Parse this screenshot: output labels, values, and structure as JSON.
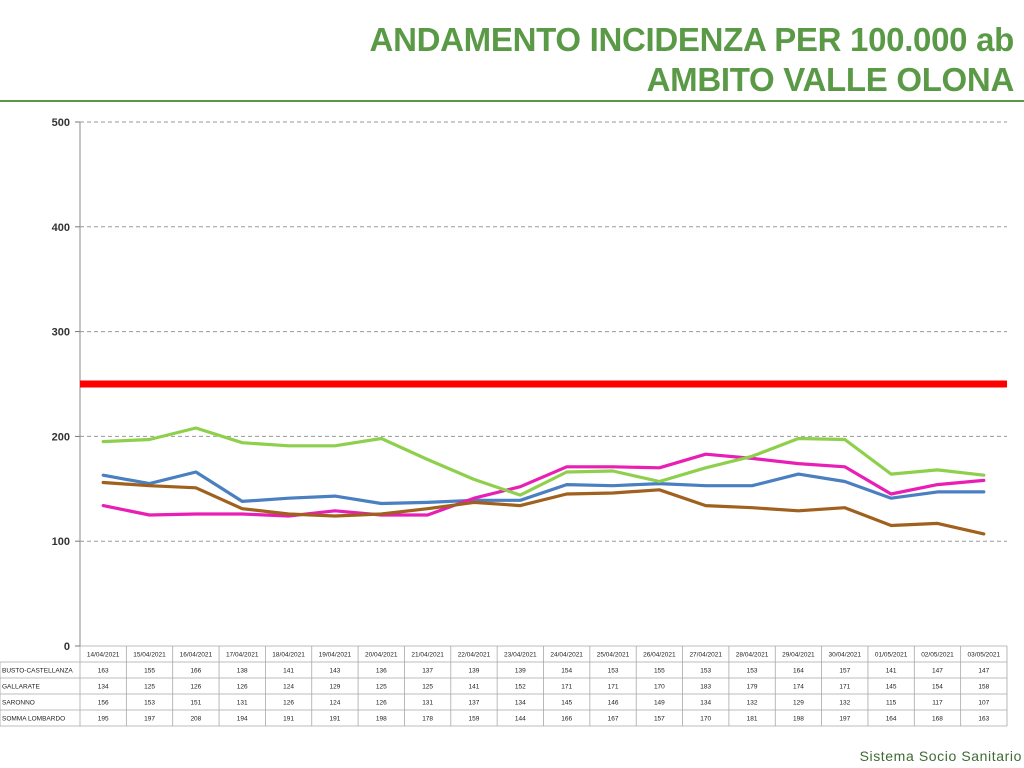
{
  "header": {
    "title_line1": "ANDAMENTO INCIDENZA PER 100.000 ab",
    "title_line2": "AMBITO VALLE OLONA"
  },
  "footer": {
    "text": "Sistema Socio Sanitario"
  },
  "colors": {
    "title": "#5a9a46",
    "threshold": "#ff0000",
    "busto": "#4a7fc1",
    "gallarate": "#e91eb4",
    "saronno": "#a0601e",
    "somma": "#8ed04c"
  },
  "chart_data": {
    "type": "line",
    "title": "ANDAMENTO INCIDENZA PER 100.000 ab - AMBITO VALLE OLONA",
    "ylim": [
      0,
      500
    ],
    "yticks": [
      0,
      100,
      200,
      300,
      400,
      500
    ],
    "grid": true,
    "threshold": 250,
    "categories": [
      "14/04/2021",
      "15/04/2021",
      "16/04/2021",
      "17/04/2021",
      "18/04/2021",
      "19/04/2021",
      "20/04/2021",
      "21/04/2021",
      "22/04/2021",
      "23/04/2021",
      "24/04/2021",
      "25/04/2021",
      "26/04/2021",
      "27/04/2021",
      "28/04/2021",
      "29/04/2021",
      "30/04/2021",
      "01/05/2021",
      "02/05/2021",
      "03/05/2021"
    ],
    "series": [
      {
        "name": "BUSTO-CASTELLANZA",
        "color": "#4a7fc1",
        "values": [
          163,
          155,
          166,
          138,
          141,
          143,
          136,
          137,
          139,
          139,
          154,
          153,
          155,
          153,
          153,
          164,
          157,
          141,
          147,
          147
        ]
      },
      {
        "name": "GALLARATE",
        "color": "#e91eb4",
        "values": [
          134,
          125,
          126,
          126,
          124,
          129,
          125,
          125,
          141,
          152,
          171,
          171,
          170,
          183,
          179,
          174,
          171,
          145,
          154,
          158
        ]
      },
      {
        "name": "SARONNO",
        "color": "#a0601e",
        "values": [
          156,
          153,
          151,
          131,
          126,
          124,
          126,
          131,
          137,
          134,
          145,
          146,
          149,
          134,
          132,
          129,
          132,
          115,
          117,
          107
        ]
      },
      {
        "name": "SOMMA LOMBARDO",
        "color": "#8ed04c",
        "values": [
          195,
          197,
          208,
          194,
          191,
          191,
          198,
          178,
          159,
          144,
          166,
          167,
          157,
          170,
          181,
          198,
          197,
          164,
          168,
          163
        ]
      }
    ]
  }
}
